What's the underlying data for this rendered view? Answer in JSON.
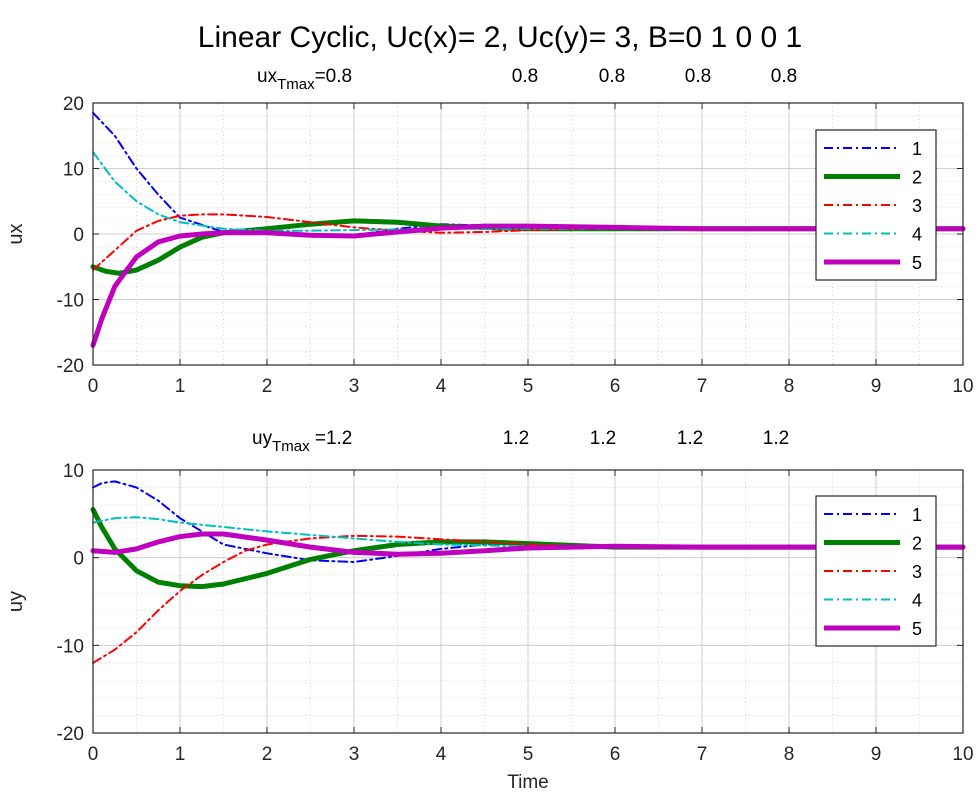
{
  "figure": {
    "title": "Linear Cyclic,    Uc(x)= 2, Uc(y)= 3, B=0  1  0  0  1"
  },
  "chart_data": [
    {
      "type": "line",
      "ylabel": "ux",
      "xlabel": "",
      "xlim": [
        0,
        10
      ],
      "ylim": [
        -20,
        20
      ],
      "xticks": [
        0,
        1,
        2,
        3,
        4,
        5,
        6,
        7,
        8,
        9,
        10
      ],
      "yticks": [
        -20,
        -10,
        0,
        10,
        20
      ],
      "grid": true,
      "legend_position": "top-right",
      "annotation": {
        "prefix": "ux",
        "subscript": "Tmax",
        "first": "=0.8",
        "rest": [
          "0.8",
          "0.8",
          "0.8",
          "0.8"
        ]
      },
      "series": [
        {
          "name": "1",
          "color": "#0000ff",
          "style": "dashdot",
          "width": 2,
          "x": [
            0,
            0.25,
            0.5,
            0.75,
            1,
            1.5,
            2,
            2.5,
            3,
            3.5,
            4,
            4.5,
            5,
            6,
            7,
            8,
            9,
            10
          ],
          "y": [
            18.5,
            15,
            10,
            6,
            2.5,
            0.3,
            0,
            -0.3,
            -0.2,
            0.8,
            1.5,
            1.3,
            1.0,
            0.8,
            0.8,
            0.8,
            0.8,
            0.8
          ]
        },
        {
          "name": "2",
          "color": "#008000",
          "style": "solid",
          "width": 5,
          "x": [
            0,
            0.15,
            0.3,
            0.5,
            0.75,
            1,
            1.25,
            1.5,
            2,
            2.5,
            3,
            3.5,
            4,
            4.5,
            5,
            6,
            7,
            8,
            9,
            10
          ],
          "y": [
            -5,
            -5.7,
            -6,
            -5.5,
            -4,
            -2,
            -0.5,
            0.2,
            0.8,
            1.5,
            2,
            1.8,
            1.2,
            1.0,
            0.8,
            0.8,
            0.8,
            0.8,
            0.8,
            0.8
          ]
        },
        {
          "name": "3",
          "color": "#ff0000",
          "style": "dashdot",
          "width": 2,
          "x": [
            0,
            0.25,
            0.5,
            0.75,
            1,
            1.25,
            1.5,
            2,
            2.5,
            3,
            3.5,
            4,
            4.5,
            5,
            6,
            7,
            8,
            9,
            10
          ],
          "y": [
            -5.5,
            -2.5,
            0.5,
            2.0,
            2.8,
            3.0,
            3.0,
            2.6,
            1.8,
            1.0,
            0.5,
            0.2,
            0.3,
            0.6,
            0.9,
            0.8,
            0.8,
            0.8,
            0.8
          ]
        },
        {
          "name": "4",
          "color": "#00bfbf",
          "style": "dashdot",
          "width": 2,
          "x": [
            0,
            0.25,
            0.5,
            0.75,
            1,
            1.5,
            2,
            2.5,
            3,
            3.5,
            4,
            5,
            6,
            7,
            8,
            9,
            10
          ],
          "y": [
            12.5,
            8,
            5,
            3,
            1.8,
            0.8,
            0.5,
            0.5,
            0.6,
            0.7,
            0.8,
            0.8,
            0.8,
            0.8,
            0.8,
            0.8,
            0.8
          ]
        },
        {
          "name": "5",
          "color": "#bf00bf",
          "style": "solid",
          "width": 5,
          "x": [
            0,
            0.1,
            0.25,
            0.5,
            0.75,
            1,
            1.25,
            1.5,
            2,
            2.5,
            3,
            3.5,
            4,
            4.5,
            5,
            6,
            7,
            8,
            9,
            10
          ],
          "y": [
            -17,
            -13,
            -8,
            -3.5,
            -1.2,
            -0.3,
            0,
            0.2,
            0.2,
            -0.2,
            -0.3,
            0.3,
            0.9,
            1.2,
            1.2,
            1.0,
            0.8,
            0.8,
            0.8,
            0.8
          ]
        }
      ]
    },
    {
      "type": "line",
      "ylabel": "uy",
      "xlabel": "Time",
      "xlim": [
        0,
        10
      ],
      "ylim": [
        -20,
        10
      ],
      "xticks": [
        0,
        1,
        2,
        3,
        4,
        5,
        6,
        7,
        8,
        9,
        10
      ],
      "yticks": [
        -20,
        -10,
        0,
        10
      ],
      "grid": true,
      "legend_position": "right",
      "annotation": {
        "prefix": "uy",
        "subscript": "Tmax",
        "first": " =1.2",
        "rest": [
          "1.2",
          "1.2",
          "1.2",
          "1.2"
        ]
      },
      "series": [
        {
          "name": "1",
          "color": "#0000ff",
          "style": "dashdot",
          "width": 2,
          "x": [
            0,
            0.1,
            0.25,
            0.5,
            0.75,
            1,
            1.25,
            1.5,
            2,
            2.5,
            3,
            3.5,
            4,
            4.5,
            5,
            6,
            7,
            8,
            9,
            10
          ],
          "y": [
            8,
            8.5,
            8.7,
            8,
            6.5,
            4.5,
            3,
            1.5,
            0.5,
            -0.3,
            -0.5,
            0.2,
            1.0,
            1.5,
            1.6,
            1.3,
            1.2,
            1.2,
            1.2,
            1.2
          ]
        },
        {
          "name": "2",
          "color": "#008000",
          "style": "solid",
          "width": 5,
          "x": [
            0,
            0.1,
            0.25,
            0.5,
            0.75,
            1,
            1.25,
            1.5,
            2,
            2.5,
            3,
            3.5,
            4,
            4.5,
            5,
            6,
            7,
            8,
            9,
            10
          ],
          "y": [
            5.5,
            3.5,
            1,
            -1.5,
            -2.8,
            -3.2,
            -3.3,
            -3,
            -1.8,
            -0.2,
            0.8,
            1.5,
            1.8,
            1.8,
            1.6,
            1.2,
            1.2,
            1.2,
            1.2,
            1.2
          ]
        },
        {
          "name": "3",
          "color": "#ff0000",
          "style": "dashdot",
          "width": 2,
          "x": [
            0,
            0.25,
            0.5,
            0.75,
            1,
            1.25,
            1.5,
            1.75,
            2,
            2.5,
            3,
            3.5,
            4,
            4.5,
            5,
            6,
            7,
            8,
            9,
            10
          ],
          "y": [
            -12,
            -10.5,
            -8.5,
            -6,
            -3.8,
            -2,
            -0.5,
            0.8,
            1.5,
            2.2,
            2.5,
            2.4,
            2.1,
            1.8,
            1.5,
            1.2,
            1.2,
            1.2,
            1.2,
            1.2
          ]
        },
        {
          "name": "4",
          "color": "#00bfbf",
          "style": "dashdot",
          "width": 2,
          "x": [
            0,
            0.25,
            0.5,
            0.75,
            1,
            1.5,
            2,
            2.5,
            3,
            3.5,
            4,
            5,
            6,
            7,
            8,
            9,
            10
          ],
          "y": [
            4,
            4.5,
            4.6,
            4.4,
            4.0,
            3.5,
            3.0,
            2.6,
            2.2,
            1.8,
            1.5,
            1.3,
            1.2,
            1.2,
            1.2,
            1.2,
            1.2
          ]
        },
        {
          "name": "5",
          "color": "#bf00bf",
          "style": "solid",
          "width": 5,
          "x": [
            0,
            0.25,
            0.5,
            0.75,
            1,
            1.25,
            1.5,
            2,
            2.5,
            3,
            3.5,
            4,
            4.5,
            5,
            6,
            7,
            8,
            9,
            10
          ],
          "y": [
            0.8,
            0.6,
            1.0,
            1.8,
            2.4,
            2.7,
            2.7,
            2.0,
            1.2,
            0.6,
            0.4,
            0.5,
            0.8,
            1.1,
            1.3,
            1.2,
            1.2,
            1.2,
            1.2
          ]
        }
      ]
    }
  ]
}
